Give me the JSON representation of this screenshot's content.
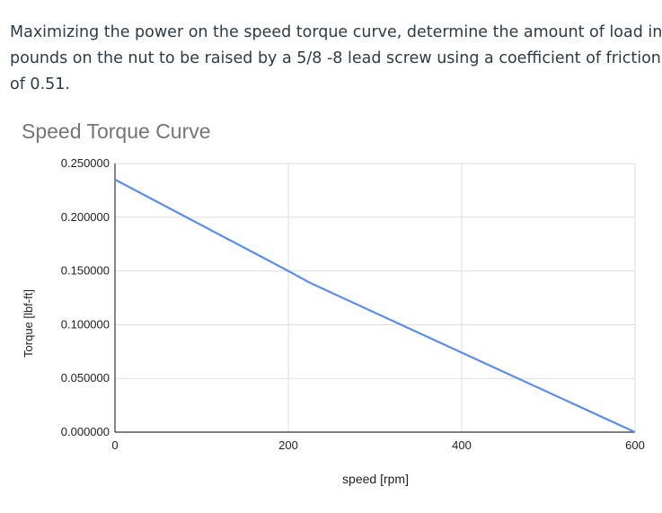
{
  "question": {
    "lines": [
      "Maximizing the power on the speed torque curve, determine the amount of load in",
      "pounds on the nut to be raised by a 5/8  -8  lead screw using a coefficient of friction",
      "of 0.51."
    ]
  },
  "colors": {
    "series": "#5b8def",
    "grid": "#dddddd",
    "axis": "#333333",
    "title": "#757575",
    "text": "#222222"
  },
  "chart_data": {
    "type": "line",
    "title": "Speed Torque Curve",
    "xlabel": "speed [rpm]",
    "ylabel": "Torque [lbf-ft]",
    "xlim": [
      0,
      600
    ],
    "ylim": [
      0,
      0.25
    ],
    "xticks": [
      0,
      200,
      400,
      600
    ],
    "xtick_labels": [
      "0",
      "200",
      "400",
      "600"
    ],
    "yticks": [
      0,
      0.05,
      0.1,
      0.15,
      0.2,
      0.25
    ],
    "ytick_labels": [
      "0.000000",
      "0.050000",
      "0.100000",
      "0.150000",
      "0.200000",
      "0.250000"
    ],
    "grid": true,
    "series": [
      {
        "x": [
          0,
          200,
          225,
          400,
          600
        ],
        "y": [
          0.235,
          0.15,
          0.139,
          0.074,
          0.0
        ]
      }
    ]
  }
}
